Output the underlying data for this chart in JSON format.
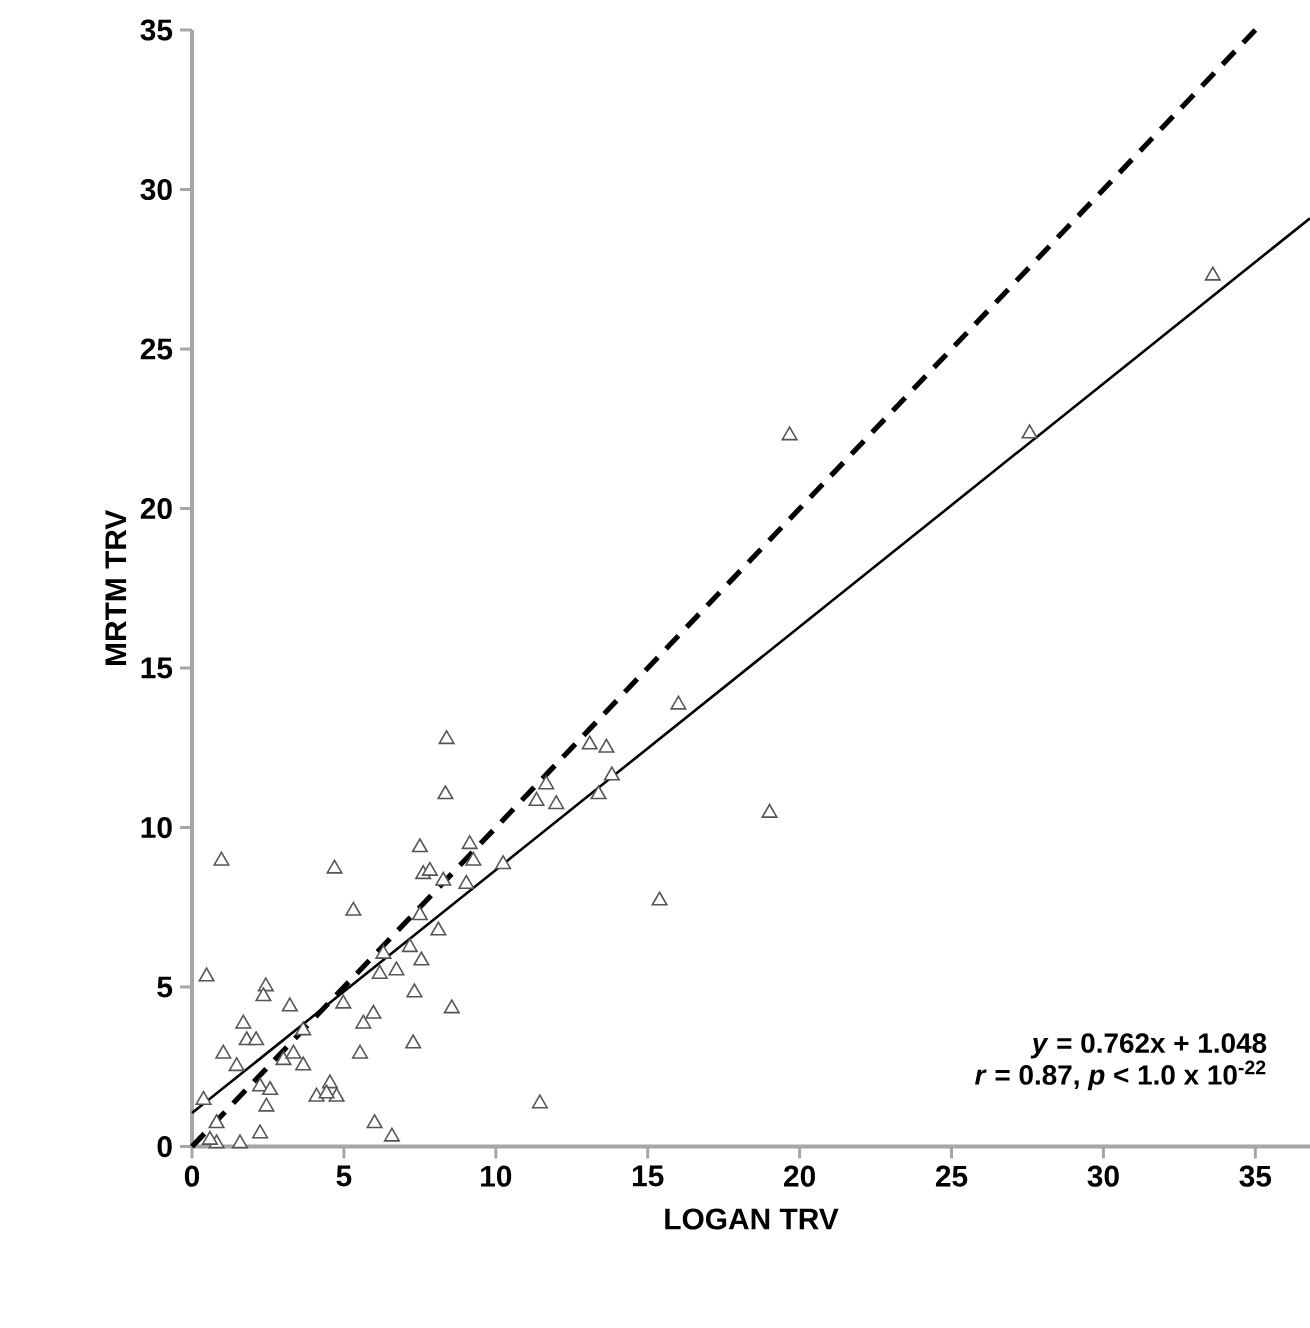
{
  "chart_data": {
    "type": "scatter",
    "xlabel": "LOGAN TRV",
    "ylabel": "MRTM  TRV",
    "xlim": [
      0,
      36.8
    ],
    "ylim": [
      0,
      35
    ],
    "xticks": [
      0,
      5,
      10,
      15,
      20,
      25,
      30,
      35
    ],
    "yticks": [
      0,
      5,
      10,
      15,
      20,
      25,
      30,
      35
    ],
    "grid": false,
    "annotations": [
      "*y* = 0.762x + 1.048",
      "*r* = 0.87, *p* < 1.0 x 10$^{-22}$"
    ],
    "series": [
      {
        "color": "#555555",
        "marker": "triangle",
        "x": [
          0.97,
          8.34,
          4.69,
          5.31,
          0.48,
          2.43,
          2.35,
          3.22,
          1.69,
          3.66,
          1.8,
          2.11,
          1.03,
          1.47,
          3.01,
          3.66,
          3.34,
          2.24,
          2.57,
          2.45,
          2.24,
          1.58,
          0.81,
          0.81,
          0.38,
          0.59,
          4.54,
          4.1,
          4.76,
          4.43,
          5.53,
          5.64,
          5.97,
          4.98,
          7.28,
          8.55,
          7.32,
          6.18,
          6.73,
          6.3,
          7.17,
          7.55,
          7.5,
          8.11,
          7.5,
          7.61,
          7.83,
          8.27,
          9.14,
          9.26,
          9.03,
          10.24,
          6.58,
          6.01,
          8.38,
          13.09,
          13.64,
          16.01,
          11.66,
          11.34,
          11.99,
          13.82,
          13.38,
          15.39,
          19.67,
          27.57,
          19.01,
          33.6,
          11.45
        ],
        "values": [
          8.96,
          11.04,
          8.71,
          7.39,
          5.33,
          5.02,
          4.71,
          4.39,
          3.85,
          3.64,
          3.33,
          3.33,
          2.91,
          2.52,
          2.71,
          2.54,
          2.91,
          1.88,
          1.77,
          1.25,
          0.41,
          0.1,
          0.73,
          0.1,
          1.46,
          0.21,
          1.98,
          1.56,
          1.56,
          1.66,
          2.91,
          3.85,
          4.16,
          4.48,
          3.23,
          4.33,
          4.83,
          5.41,
          5.52,
          6.04,
          6.25,
          5.83,
          7.25,
          6.77,
          9.38,
          8.54,
          8.64,
          8.33,
          9.48,
          8.96,
          8.23,
          8.85,
          0.31,
          0.73,
          12.77,
          12.6,
          12.5,
          13.85,
          11.35,
          10.83,
          10.73,
          11.63,
          11.04,
          7.71,
          22.29,
          22.35,
          10.46,
          27.3,
          1.35
        ]
      },
      {
        "type": "line",
        "color": "#000000",
        "line_style": "dashed",
        "marker": "none",
        "x": [
          0,
          35
        ],
        "values": [
          0,
          35
        ]
      },
      {
        "type": "line",
        "color": "#000000",
        "line_style": "solid",
        "marker": "none",
        "x": [
          0,
          36.8
        ],
        "values": [
          1.05,
          29.1
        ]
      }
    ]
  }
}
